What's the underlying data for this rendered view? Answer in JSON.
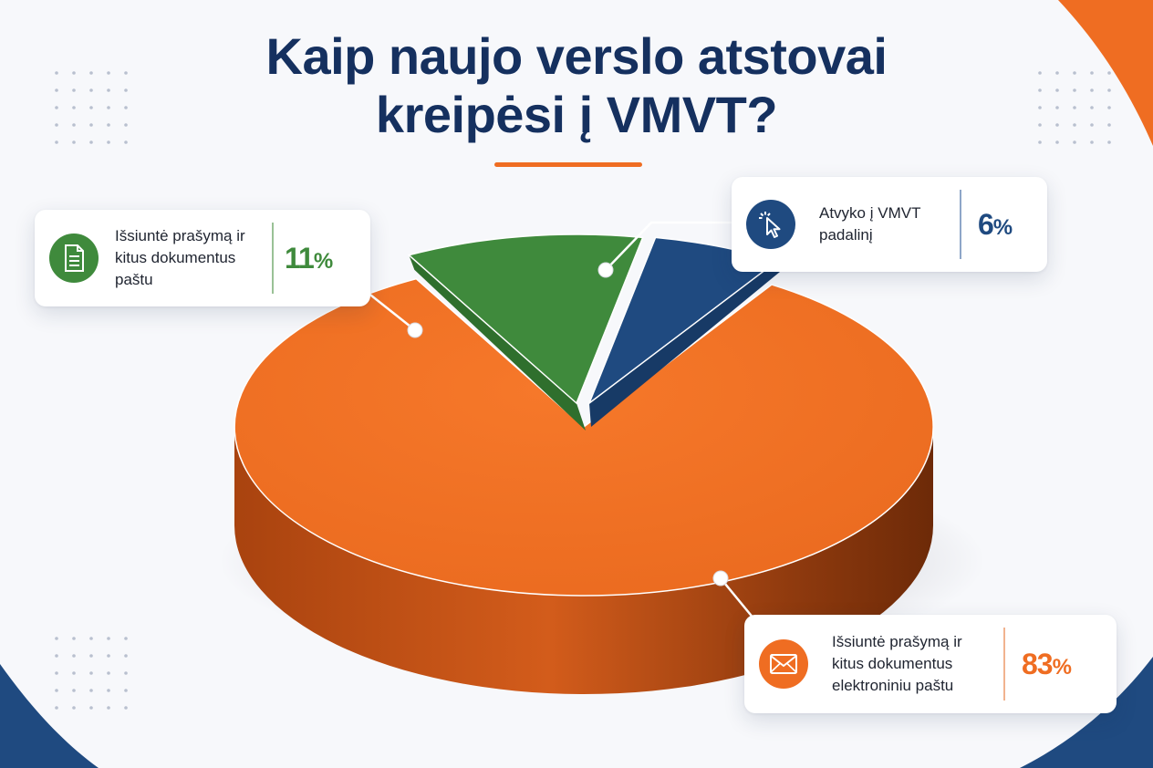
{
  "chart_data": {
    "type": "pie",
    "title": "Kaip naujo verslo atstovai kreipėsi į VMVT?",
    "title_lines": [
      "Kaip naujo verslo atstovai",
      "kreipėsi į VMVT?"
    ],
    "slices": [
      {
        "key": "orange",
        "label": "Išsiuntė prašymą ir kitus dokumentus elektroniniu paštu",
        "label_lines": [
          "Išsiuntė prašymą ir",
          "kitus dokumentus",
          "elektroniniu paštu"
        ],
        "value": 83,
        "value_text": "83",
        "color": "#ef6d22",
        "icon": "envelope-icon"
      },
      {
        "key": "green",
        "label": "Išsiuntė prašymą ir kitus dokumentus paštu",
        "label_lines": [
          "Išsiuntė prašymą ir",
          "kitus dokumentus",
          "paštu"
        ],
        "value": 11,
        "value_text": "11",
        "color": "#3f8a3c",
        "icon": "document-icon"
      },
      {
        "key": "blue",
        "label": "Atvyko į VMVT padalinį",
        "label_lines": [
          "Atvyko į VMVT",
          "padalinį"
        ],
        "value": 6,
        "value_text": "6",
        "color": "#1f4a80",
        "icon": "cursor-click-icon"
      }
    ],
    "unit": "%",
    "legend": "callouts"
  },
  "colors": {
    "title": "#15305f",
    "accent": "#ef6d22",
    "background": "#f7f8fb"
  }
}
